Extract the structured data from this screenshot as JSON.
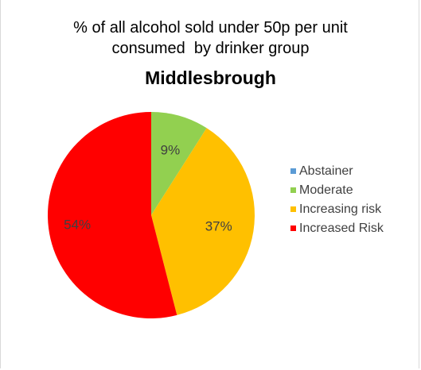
{
  "chart_data": {
    "type": "pie",
    "title": "% of all alcohol sold under 50p per unit consumed  by drinker group",
    "title_lines": [
      "% of all alcohol sold under 50p per unit",
      "consumed  by drinker group"
    ],
    "subtitle": "Middlesbrough",
    "legend_position": "right",
    "slices": [
      {
        "label": "Abstainer",
        "value": 0,
        "color": "#5b9bd5",
        "data_label": ""
      },
      {
        "label": "Moderate",
        "value": 9,
        "color": "#92d050",
        "data_label": "9%"
      },
      {
        "label": "Increasing risk",
        "value": 37,
        "color": "#ffc000",
        "data_label": "37%"
      },
      {
        "label": "Increased Risk",
        "value": 54,
        "color": "#ff0000",
        "data_label": "54%"
      }
    ]
  }
}
